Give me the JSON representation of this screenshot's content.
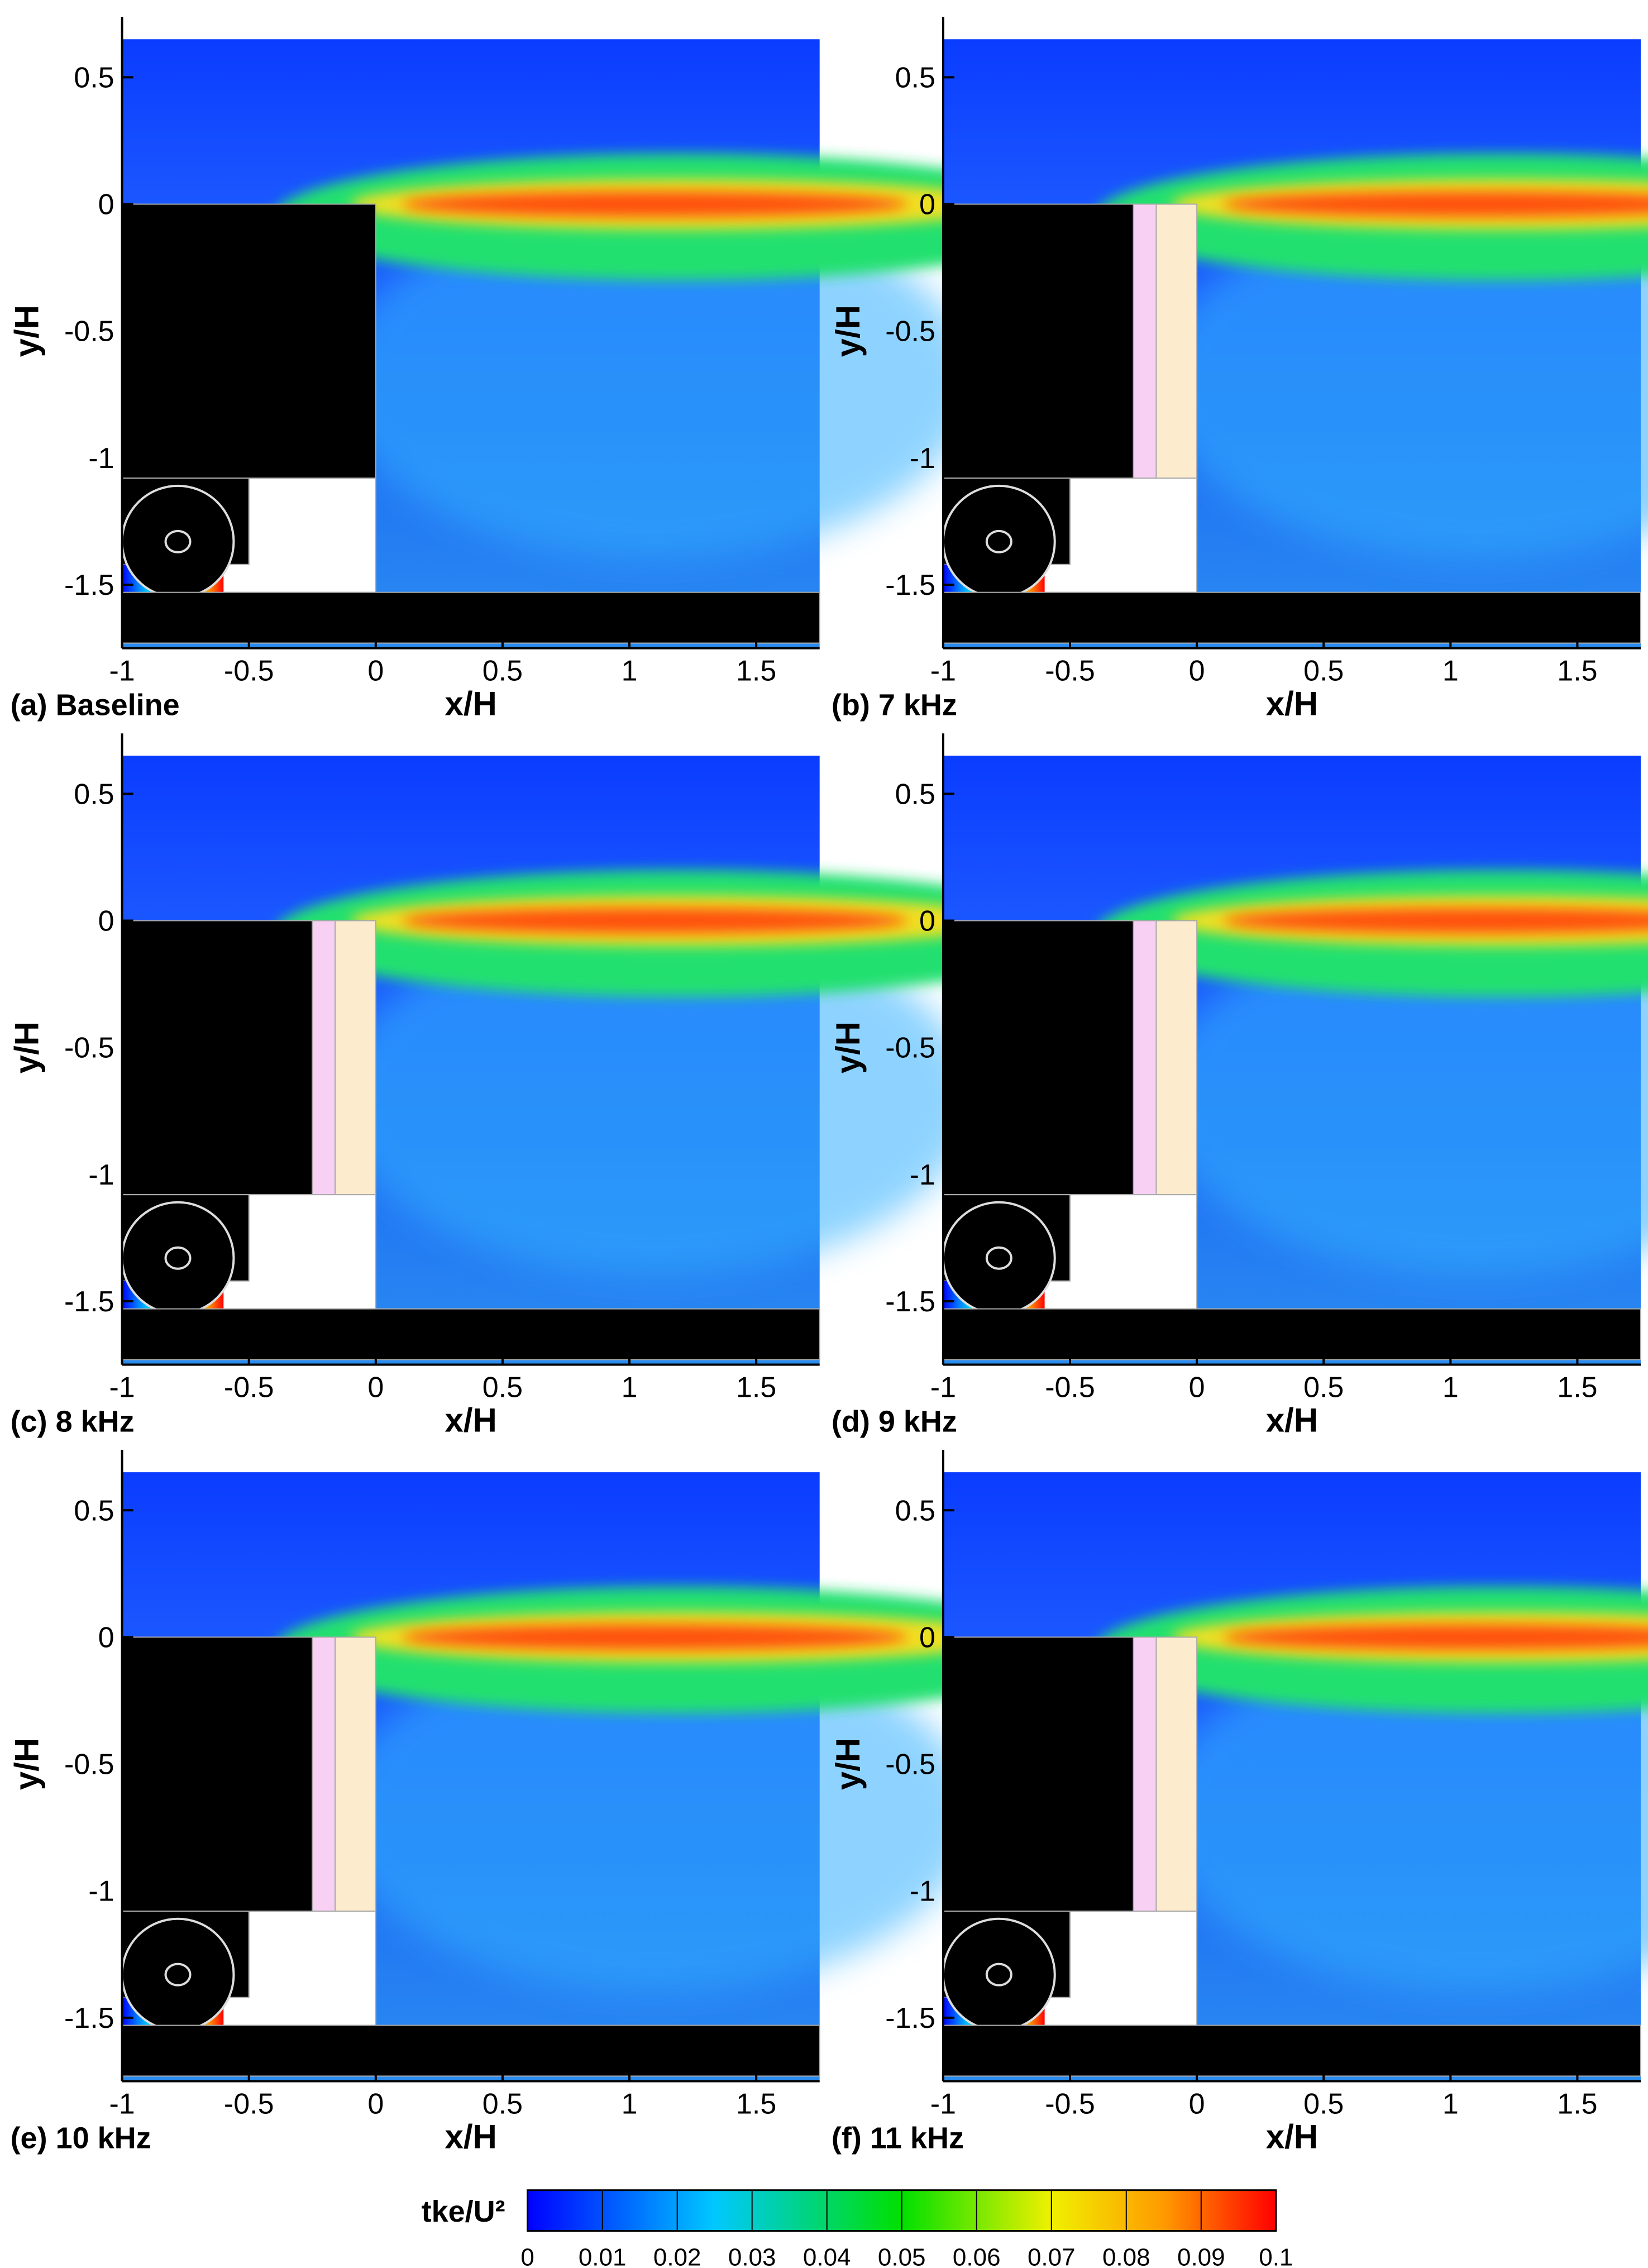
{
  "chart_data": [
    {
      "type": "contour",
      "title": "(a) Baseline",
      "xlabel": "x/H",
      "ylabel": "y/H",
      "xlim": [
        -1,
        1.75
      ],
      "ylim": [
        -1.75,
        0.65
      ],
      "xticks": [
        -1,
        -0.5,
        0,
        0.5,
        1,
        1.5
      ],
      "yticks": [
        0.5,
        0,
        -0.5,
        -1,
        -1.5
      ]
    },
    {
      "type": "contour",
      "title": "(b) 7 kHz",
      "xlabel": "x/H",
      "ylabel": "y/H",
      "xlim": [
        -1,
        1.75
      ],
      "ylim": [
        -1.75,
        0.65
      ],
      "xticks": [
        -1,
        -0.5,
        0,
        0.5,
        1,
        1.5
      ],
      "yticks": [
        0.5,
        0,
        -0.5,
        -1,
        -1.5
      ]
    },
    {
      "type": "contour",
      "title": "(c) 8 kHz",
      "xlabel": "x/H",
      "ylabel": "y/H",
      "xlim": [
        -1,
        1.75
      ],
      "ylim": [
        -1.75,
        0.65
      ],
      "xticks": [
        -1,
        -0.5,
        0,
        0.5,
        1,
        1.5
      ],
      "yticks": [
        0.5,
        0,
        -0.5,
        -1,
        -1.5
      ]
    },
    {
      "type": "contour",
      "title": "(d) 9 kHz",
      "xlabel": "x/H",
      "ylabel": "y/H",
      "xlim": [
        -1,
        1.75
      ],
      "ylim": [
        -1.75,
        0.65
      ],
      "xticks": [
        -1,
        -0.5,
        0,
        0.5,
        1,
        1.5
      ],
      "yticks": [
        0.5,
        0,
        -0.5,
        -1,
        -1.5
      ]
    },
    {
      "type": "contour",
      "title": "(e) 10 kHz",
      "xlabel": "x/H",
      "ylabel": "y/H",
      "xlim": [
        -1,
        1.75
      ],
      "ylim": [
        -1.75,
        0.65
      ],
      "xticks": [
        -1,
        -0.5,
        0,
        0.5,
        1,
        1.5
      ],
      "yticks": [
        0.5,
        0,
        -0.5,
        -1,
        -1.5
      ]
    },
    {
      "type": "contour",
      "title": "(f) 11 kHz",
      "xlabel": "x/H",
      "ylabel": "y/H",
      "xlim": [
        -1,
        1.75
      ],
      "ylim": [
        -1.75,
        0.65
      ],
      "xticks": [
        -1,
        -0.5,
        0,
        0.5,
        1,
        1.5
      ],
      "yticks": [
        0.5,
        0,
        -0.5,
        -1,
        -1.5
      ]
    }
  ],
  "colorbar": {
    "label": "tke/U²",
    "lim": [
      0,
      0.1
    ],
    "ticks": [
      0,
      0.01,
      0.02,
      0.03,
      0.04,
      0.05,
      0.06,
      0.07,
      0.08,
      0.09,
      0.1
    ]
  }
}
